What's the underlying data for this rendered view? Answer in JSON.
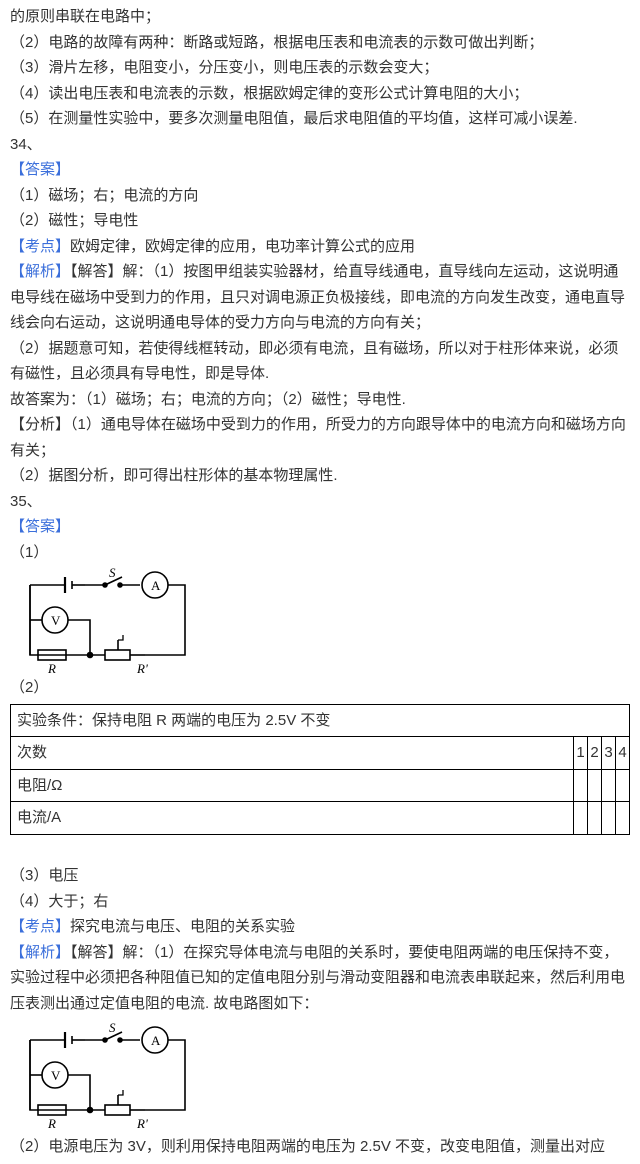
{
  "p1": "的原则串联在电路中；",
  "p2": "（2）电路的故障有两种：断路或短路，根据电压表和电流表的示数可做出判断；",
  "p3": "（3）滑片左移，电阻变小，分压变小，则电压表的示数会变大；",
  "p4": "（4）读出电压表和电流表的示数，根据欧姆定律的变形公式计算电阻的大小；",
  "p5": "（5）在测量性实验中，要多次测量电阻值，最后求电阻值的平均值，这样可减小误差.",
  "q34_num": "34、",
  "ans_label": "【答案】",
  "a34_1": "（1）磁场；右；电流的方向",
  "a34_2": "（2）磁性；导电性",
  "kd_label": "【考点】",
  "kd34": "欧姆定律，欧姆定律的应用，电功率计算公式的应用",
  "jx_label": "【解析】",
  "jx34_1": "【解答】解：（1）按图甲组装实验器材，给直导线通电，直导线向左运动，这说明通电导线在磁场中受到力的作用，且只对调电源正负极接线，即电流的方向发生改变，通电直导线会向右运动，这说明通电导体的受力方向与电流的方向有关；",
  "jx34_2": "（2）据题意可知，若使得线框转动，即必须有电流，且有磁场，所以对于柱形体来说，必须有磁性，且必须具有导电性，即是导体.",
  "jx34_3": "故答案为：（1）磁场；右；电流的方向；（2）磁性；导电性.",
  "fx34_1": "【分析】（1）通电导体在磁场中受到力的作用，所受力的方向跟导体中的电流方向和磁场方向有关；",
  "fx34_2": "（2）据图分析，即可得出柱形体的基本物理属性.",
  "q35_num": "35、",
  "a35_1_prefix": "（1）",
  "a35_2": "（2）",
  "table": {
    "row1": "实验条件：保持电阻 R 两端的电压为 2.5V 不变",
    "row2": "次数",
    "row2_cells": [
      "1",
      "2",
      "3",
      "4"
    ],
    "row3": "电阻/Ω",
    "row4": "电流/A"
  },
  "a35_3": "（3）电压",
  "a35_4": "（4）大于；右",
  "kd35": "探究电流与电压、电阻的关系实验",
  "jx35_1": "【解答】解：（1）在探究导体电流与电阻的关系时，要使电阻两端的电压保持不变，实验过程中必须把各种阻值已知的定值电阻分别与滑动变阻器和电流表串联起来，然后利用电压表测出通过定值电阻的电流. 故电路图如下：",
  "jx35_2": "（2）电源电压为 3V，则利用保持电阻两端的电压为 2.5V 不变，改变电阻值，测量出对应",
  "circuit": {
    "S": "S",
    "A": "A",
    "V": "V",
    "R": "R",
    "Rprime": "R'"
  }
}
